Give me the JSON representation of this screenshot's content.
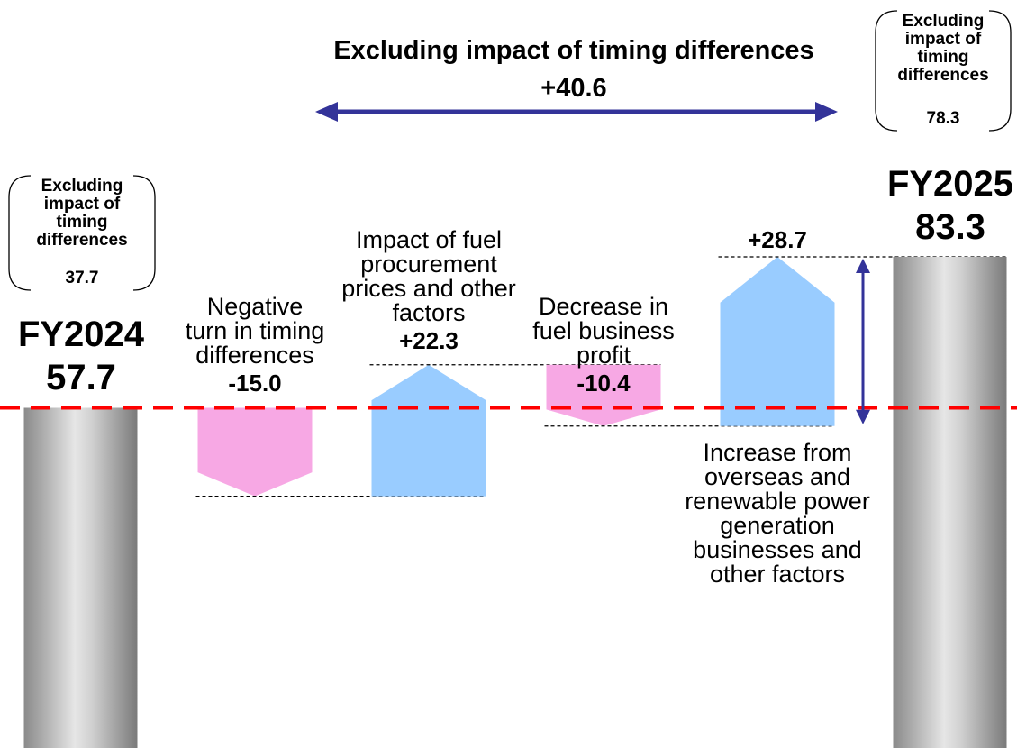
{
  "chart_data": {
    "type": "waterfall",
    "categories": [
      "FY2024",
      "Negative turn in timing differences",
      "Impact of fuel procurement prices and other factors",
      "Decrease in fuel business profit",
      "Increase from overseas and renewable power generation businesses and other factors",
      "FY2025"
    ],
    "values": [
      57.7,
      -15.0,
      22.3,
      -10.4,
      28.7,
      83.3
    ],
    "value_labels": [
      "57.7",
      "-15.0",
      "+22.3",
      "-10.4",
      "+28.7",
      "83.3"
    ],
    "colors": {
      "increase": "#99ccff",
      "decrease": "#f7a8e4",
      "total": "#a0a0a0",
      "baseline": "#ff0000",
      "arrow": "#333399"
    },
    "annotations": {
      "span": {
        "text": "Excluding impact of timing differences",
        "value": 40.6,
        "value_label": "+40.6"
      },
      "boxes": [
        {
          "text": "Excluding impact of timing differences",
          "value": 37.7
        },
        {
          "text": "Excluding impact of timing differences",
          "value": 78.3
        }
      ]
    }
  }
}
